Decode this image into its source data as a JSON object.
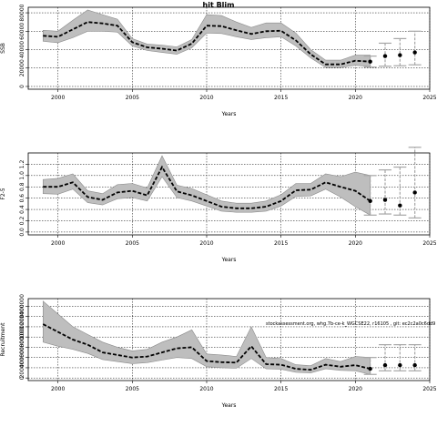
{
  "title": "hit Blim",
  "annotation": "stockassessment.org, whg.7b-ce-k_WGCSE22, r16105 , git: ec2c2a0c6dd9",
  "colors": {
    "band": "#bebebe",
    "line": "#000000",
    "grid": "#000000",
    "ci": "#a6a6a6"
  },
  "chart_data": [
    {
      "type": "line",
      "xlabel": "Years",
      "ylabel": "SSB",
      "xlim": [
        1998,
        2025
      ],
      "ylim": [
        -3000,
        86000
      ],
      "x_ticks": [
        2000,
        2005,
        2010,
        2015,
        2020,
        2025
      ],
      "y_ticks": [
        0,
        20000,
        40000,
        60000,
        80000
      ],
      "y_tick_labels": [
        "0",
        "20000",
        "40000",
        "60000",
        "80000"
      ],
      "grid": true,
      "x": [
        1999,
        2000,
        2001,
        2002,
        2003,
        2004,
        2005,
        2006,
        2007,
        2008,
        2009,
        2010,
        2011,
        2012,
        2013,
        2014,
        2015,
        2016,
        2017,
        2018,
        2019,
        2020,
        2021
      ],
      "estimate": [
        55000,
        54000,
        62000,
        70000,
        68500,
        66000,
        48000,
        42500,
        41000,
        39000,
        46500,
        66000,
        65500,
        61000,
        57000,
        60000,
        60500,
        50000,
        35000,
        24000,
        24000,
        28000,
        27000
      ],
      "upper": [
        61000,
        60000,
        72000,
        83000,
        78000,
        73000,
        52000,
        46000,
        45000,
        43000,
        51000,
        78000,
        77000,
        70000,
        64000,
        69000,
        69000,
        58000,
        40000,
        28500,
        28500,
        34000,
        34000
      ],
      "lower": [
        49000,
        47500,
        53000,
        60000,
        60000,
        59000,
        44000,
        39000,
        37000,
        35000,
        42000,
        58000,
        57500,
        54000,
        51000,
        53000,
        54000,
        44000,
        31000,
        20500,
        20500,
        23000,
        21500
      ],
      "forecast": {
        "x": [
          2021,
          2022,
          2023,
          2024
        ],
        "median": [
          27000,
          33000,
          34000,
          37000
        ],
        "low": [
          21000,
          22000,
          22500,
          23500
        ],
        "high": [
          33000,
          47000,
          52000,
          60000
        ]
      }
    },
    {
      "type": "line",
      "xlabel": "Years",
      "ylabel": "F2-5",
      "xlim": [
        1998,
        2025
      ],
      "ylim": [
        -0.05,
        1.4
      ],
      "x_ticks": [
        2000,
        2005,
        2010,
        2015,
        2020,
        2025
      ],
      "y_ticks": [
        0,
        0.2,
        0.4,
        0.6,
        0.8,
        1.0,
        1.2
      ],
      "y_tick_labels": [
        "0.0",
        "0.2",
        "0.4",
        "0.6",
        "0.8",
        "1.0",
        "1.2"
      ],
      "grid": true,
      "x": [
        1999,
        2000,
        2001,
        2002,
        2003,
        2004,
        2005,
        2006,
        2007,
        2008,
        2009,
        2010,
        2011,
        2012,
        2013,
        2014,
        2015,
        2016,
        2017,
        2018,
        2019,
        2020,
        2021
      ],
      "estimate": [
        0.8,
        0.8,
        0.88,
        0.62,
        0.57,
        0.7,
        0.73,
        0.65,
        1.15,
        0.72,
        0.65,
        0.55,
        0.45,
        0.42,
        0.42,
        0.45,
        0.55,
        0.74,
        0.75,
        0.88,
        0.8,
        0.73,
        0.55
      ],
      "upper": [
        0.93,
        0.95,
        1.03,
        0.73,
        0.68,
        0.84,
        0.86,
        0.78,
        1.35,
        0.83,
        0.77,
        0.66,
        0.55,
        0.51,
        0.51,
        0.55,
        0.66,
        0.86,
        0.86,
        1.03,
        0.98,
        1.06,
        1.0
      ],
      "lower": [
        0.68,
        0.67,
        0.76,
        0.52,
        0.48,
        0.59,
        0.61,
        0.55,
        0.98,
        0.61,
        0.55,
        0.46,
        0.37,
        0.35,
        0.35,
        0.37,
        0.46,
        0.63,
        0.64,
        0.76,
        0.62,
        0.45,
        0.3
      ],
      "forecast": {
        "x": [
          2021,
          2022,
          2023,
          2024
        ],
        "median": [
          0.55,
          0.57,
          0.47,
          0.7
        ],
        "low": [
          0.3,
          0.32,
          0.3,
          0.25
        ],
        "high": [
          1.0,
          1.1,
          1.15,
          1.5
        ]
      }
    },
    {
      "type": "line",
      "xlabel": "Years",
      "ylabel": "Recruitment",
      "xlim": [
        1998,
        2025
      ],
      "ylim": [
        -50000,
        1550000
      ],
      "x_ticks": [
        2000,
        2005,
        2010,
        2015,
        2020,
        2025
      ],
      "y_ticks": [
        0,
        200000,
        400000,
        600000,
        800000,
        1000000,
        1200000,
        1400000
      ],
      "y_tick_labels": [
        "0",
        "200000",
        "400000",
        "600000",
        "800000",
        "1000000",
        "1200000",
        "1400000"
      ],
      "grid": true,
      "x": [
        1999,
        2000,
        2001,
        2002,
        2003,
        2004,
        2005,
        2006,
        2007,
        2008,
        2009,
        2010,
        2011,
        2012,
        2013,
        2014,
        2015,
        2016,
        2017,
        2018,
        2019,
        2020,
        2021
      ],
      "estimate": [
        1050000,
        900000,
        750000,
        650000,
        500000,
        450000,
        400000,
        420000,
        500000,
        580000,
        600000,
        330000,
        310000,
        300000,
        620000,
        270000,
        260000,
        180000,
        160000,
        260000,
        220000,
        250000,
        180000
      ],
      "upper": [
        1500000,
        1250000,
        1000000,
        850000,
        700000,
        600000,
        530000,
        560000,
        700000,
        800000,
        940000,
        470000,
        450000,
        420000,
        1000000,
        400000,
        380000,
        260000,
        240000,
        380000,
        320000,
        420000,
        400000
      ],
      "lower": [
        700000,
        620000,
        560000,
        480000,
        360000,
        320000,
        280000,
        300000,
        350000,
        400000,
        380000,
        220000,
        200000,
        190000,
        380000,
        180000,
        170000,
        110000,
        100000,
        180000,
        150000,
        140000,
        70000
      ],
      "forecast": {
        "x": [
          2021,
          2022,
          2023,
          2024
        ],
        "median": [
          180000,
          250000,
          250000,
          250000
        ],
        "low": [
          70000,
          140000,
          140000,
          140000
        ],
        "high": [
          400000,
          650000,
          650000,
          650000
        ]
      }
    }
  ]
}
